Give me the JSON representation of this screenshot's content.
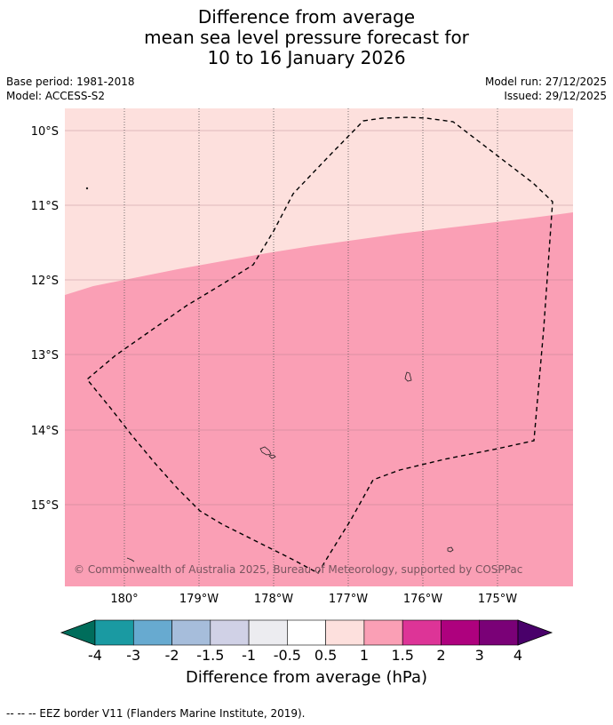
{
  "title": {
    "line1": "Difference from average",
    "line2": "mean sea level pressure forecast for",
    "line3": "10 to 16 January 2026"
  },
  "meta": {
    "base_period": "Base period: 1981-2018",
    "model": "Model: ACCESS-S2",
    "model_run": "Model run: 27/12/2025",
    "issued": "Issued: 29/12/2025"
  },
  "map": {
    "lon_ticks": [
      "180°",
      "179°W",
      "178°W",
      "177°W",
      "176°W",
      "175°W"
    ],
    "lat_ticks": [
      "10°S",
      "11°S",
      "12°S",
      "13°S",
      "14°S",
      "15°S"
    ],
    "copyright": "© Commonwealth of Australia 2025, Bureau of Meteorology, supported by COSPPac",
    "colors": {
      "band_0_5_1": "#fde0dd",
      "band_1_1_5": "#fa9fb5"
    }
  },
  "colorbar": {
    "ticks": [
      "-4",
      "-3",
      "-2",
      "-1.5",
      "-1",
      "-0.5",
      "0.5",
      "1",
      "1.5",
      "2",
      "3",
      "4"
    ],
    "colors": [
      "#006d5b",
      "#1a9aa2",
      "#67aad0",
      "#a6bddb",
      "#d0d1e6",
      "#ececf0",
      "#ffffff",
      "#fde0dd",
      "#fa9fb5",
      "#dd3497",
      "#ae017e",
      "#7a0177",
      "#49006a"
    ],
    "label": "Difference from average (hPa)"
  },
  "footer": "--  --  -- EEZ border V11 (Flanders Marine Institute, 2019)."
}
